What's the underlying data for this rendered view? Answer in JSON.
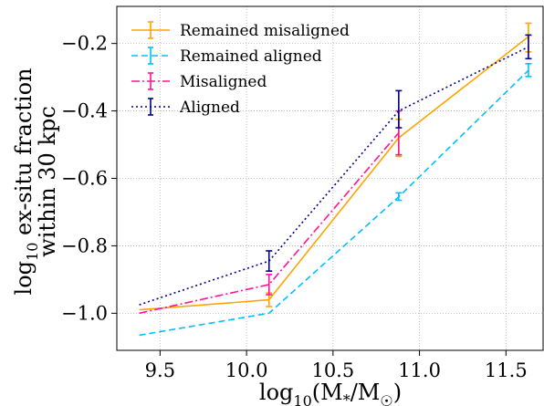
{
  "chart_data": {
    "type": "line",
    "xlabel": {
      "pre": "log",
      "sub": "10",
      "post": "(M",
      "sub2": "*",
      "post2": "/M",
      "sub3": "☉",
      "post3": ")"
    },
    "ylabel": {
      "line1_pre": "log",
      "line1_sub": "10",
      "line1_post": " ex-situ fraction",
      "line2": "within 30 kpc"
    },
    "xlim": [
      9.25,
      11.72
    ],
    "ylim": [
      -1.11,
      -0.09
    ],
    "xticks": [
      9.5,
      10.0,
      10.5,
      11.0,
      11.5
    ],
    "xtick_labels": [
      "9.5",
      "10.0",
      "10.5",
      "11.0",
      "11.5"
    ],
    "yticks": [
      -1.0,
      -0.8,
      -0.6,
      -0.4,
      -0.2
    ],
    "ytick_labels": [
      "−1.0",
      "−0.8",
      "−0.6",
      "−0.4",
      "−0.2"
    ],
    "grid": true,
    "legend_position": "top-left",
    "series": [
      {
        "name": "Remained misaligned",
        "color": "#ffa500",
        "dash": "",
        "x": [
          9.38,
          10.13,
          10.88,
          11.63
        ],
        "y": [
          -0.99,
          -0.96,
          -0.48,
          -0.18
        ],
        "err_x": [
          10.13,
          10.88,
          11.63
        ],
        "err_lo": [
          -0.98,
          -0.535,
          -0.225
        ],
        "err_hi": [
          -0.94,
          -0.425,
          -0.14
        ]
      },
      {
        "name": "Remained aligned",
        "color": "#00bfff",
        "dash": "7,4",
        "x": [
          9.38,
          10.13,
          10.88,
          11.63
        ],
        "y": [
          -1.065,
          -1.0,
          -0.655,
          -0.28
        ],
        "err_x": [
          10.88,
          11.63
        ],
        "err_lo": [
          -0.665,
          -0.298
        ],
        "err_hi": [
          -0.643,
          -0.26
        ]
      },
      {
        "name": "Misaligned",
        "color": "#ff1493",
        "dash": "9,3,2,3",
        "x": [
          9.38,
          10.13,
          10.88
        ],
        "y": [
          -1.0,
          -0.915,
          -0.465
        ],
        "err_x": [
          10.13,
          10.88
        ],
        "err_lo": [
          -0.945,
          -0.53
        ],
        "err_hi": [
          -0.885,
          -0.4
        ]
      },
      {
        "name": "Aligned",
        "color": "#00008b",
        "dash": "2,3",
        "x": [
          9.38,
          10.13,
          10.88,
          11.63
        ],
        "y": [
          -0.975,
          -0.845,
          -0.4,
          -0.21
        ],
        "err_x": [
          10.13,
          10.88,
          11.63
        ],
        "err_lo": [
          -0.875,
          -0.45,
          -0.245
        ],
        "err_hi": [
          -0.815,
          -0.34,
          -0.175
        ]
      }
    ]
  }
}
